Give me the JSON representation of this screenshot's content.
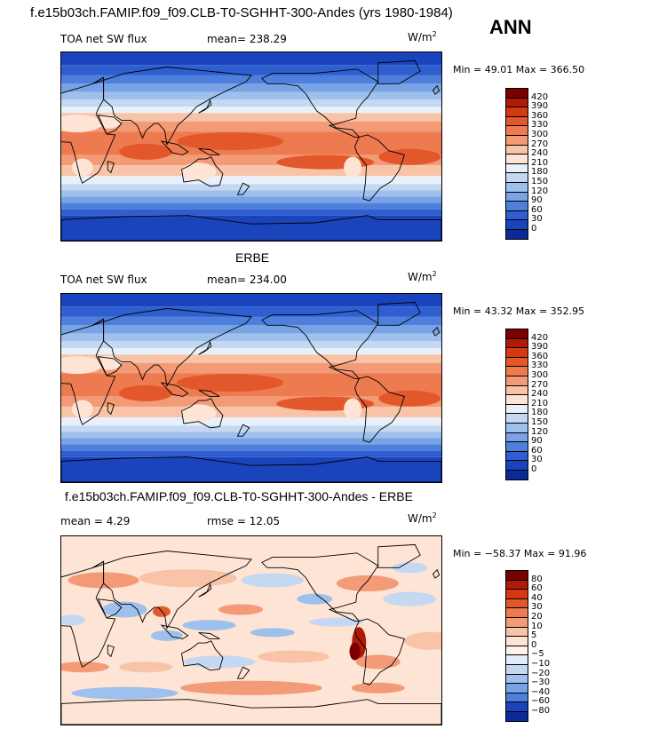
{
  "header": {
    "title": "f.e15b03ch.FAMIP.f09_f09.CLB-T0-SGHHT-300-Andes (yrs 1980-1984)",
    "season": "ANN"
  },
  "panel1": {
    "field_label": "TOA net SW flux",
    "mean_text": "mean= 238.29",
    "units_base": "W/m",
    "units_exp": "2",
    "minmax_text": "Min =  49.01 Max = 366.50"
  },
  "panel2": {
    "title": "ERBE",
    "field_label": "TOA net SW flux",
    "mean_text": "mean= 234.00",
    "units_base": "W/m",
    "units_exp": "2",
    "minmax_text": "Min =  43.32 Max = 352.95"
  },
  "panel3": {
    "title": "f.e15b03ch.FAMIP.f09_f09.CLB-T0-SGHHT-300-Andes - ERBE",
    "mean_text": "mean =   4.29",
    "rmse_text": "rmse =  12.05",
    "units_base": "W/m",
    "units_exp": "2",
    "minmax_text": "Min = −58.37 Max =  91.96"
  },
  "colors": {
    "abs_scale": [
      "#7a0000",
      "#b01a06",
      "#d33a12",
      "#e2582a",
      "#ee7a50",
      "#f39a76",
      "#f8c3a6",
      "#fde4d4",
      "#e8f0fa",
      "#c4d8f2",
      "#9dc0ec",
      "#78a3e6",
      "#4f7fdc",
      "#2f5ed0",
      "#1a44bb",
      "#0c2a96"
    ],
    "diff_scale": [
      "#7a0000",
      "#b01a06",
      "#d33a12",
      "#e2582a",
      "#ee7a50",
      "#f39a76",
      "#f8c3a6",
      "#fde4d4",
      "#fff0e8",
      "#e3ecfa",
      "#c4d8f2",
      "#9dc0ec",
      "#78a3e6",
      "#4f7fdc",
      "#1a44bb",
      "#0c2a96"
    ]
  },
  "chart_data": [
    {
      "type": "heatmap",
      "title": "f.e15b03ch.FAMIP.f09_f09.CLB-T0-SGHHT-300-Andes (yrs 1980-1984)",
      "variable": "TOA net SW flux",
      "units": "W/m2",
      "mean": 238.29,
      "min": 49.01,
      "max": 366.5,
      "levels": [
        420,
        390,
        360,
        330,
        300,
        270,
        240,
        210,
        180,
        150,
        120,
        90,
        60,
        30,
        0
      ],
      "level_labels": [
        "420",
        "390",
        "360",
        "330",
        "300",
        "270",
        "240",
        "210",
        "180",
        "150",
        "120",
        "90",
        "60",
        "30",
        "0"
      ]
    },
    {
      "type": "heatmap",
      "title": "ERBE",
      "variable": "TOA net SW flux",
      "units": "W/m2",
      "mean": 234.0,
      "min": 43.32,
      "max": 352.95,
      "levels": [
        420,
        390,
        360,
        330,
        300,
        270,
        240,
        210,
        180,
        150,
        120,
        90,
        60,
        30,
        0
      ],
      "level_labels": [
        "420",
        "390",
        "360",
        "330",
        "300",
        "270",
        "240",
        "210",
        "180",
        "150",
        "120",
        "90",
        "60",
        "30",
        "0"
      ]
    },
    {
      "type": "heatmap",
      "title": "f.e15b03ch.FAMIP.f09_f09.CLB-T0-SGHHT-300-Andes - ERBE",
      "units": "W/m2",
      "mean": 4.29,
      "rmse": 12.05,
      "min": -58.37,
      "max": 91.96,
      "levels": [
        80,
        60,
        40,
        30,
        20,
        10,
        5,
        0,
        -5,
        -10,
        -20,
        -30,
        -40,
        -60,
        -80
      ],
      "level_labels": [
        "80",
        "60",
        "40",
        "30",
        "20",
        "10",
        "5",
        "0",
        "−5",
        "−10",
        "−20",
        "−30",
        "−40",
        "−60",
        "−80"
      ]
    }
  ]
}
